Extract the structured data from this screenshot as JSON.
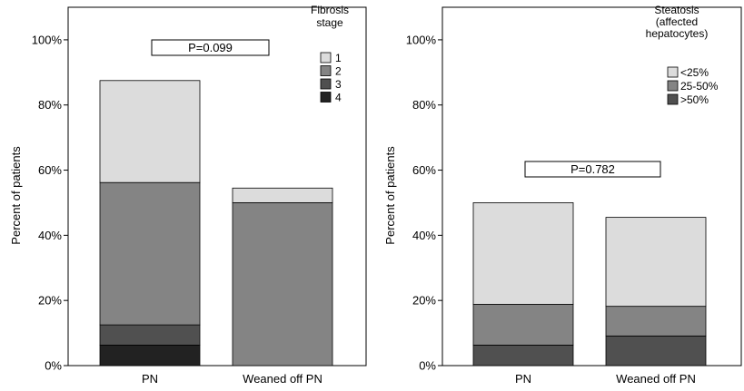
{
  "chart_data": [
    {
      "type": "bar",
      "stacked": true,
      "ylabel": "Percent of patients",
      "ylim": [
        0,
        110
      ],
      "yticks": [
        0,
        20,
        40,
        60,
        80,
        100
      ],
      "ytick_suffix": "%",
      "categories": [
        "PN",
        "Weaned off PN"
      ],
      "legend_title": [
        "Fibrosis",
        "stage"
      ],
      "legend_position": "top-right",
      "annotation": "P=0.099",
      "series": [
        {
          "name": "4",
          "color": "#222222",
          "values": [
            6.3,
            0
          ]
        },
        {
          "name": "3",
          "color": "#505050",
          "values": [
            6.2,
            0
          ]
        },
        {
          "name": "2",
          "color": "#848484",
          "values": [
            43.7,
            50.0
          ]
        },
        {
          "name": "1",
          "color": "#dcdcdc",
          "values": [
            31.3,
            4.5
          ]
        }
      ]
    },
    {
      "type": "bar",
      "stacked": true,
      "ylabel": "Percent of patients",
      "ylim": [
        0,
        110
      ],
      "yticks": [
        0,
        20,
        40,
        60,
        80,
        100
      ],
      "ytick_suffix": "%",
      "categories": [
        "PN",
        "Weaned off PN"
      ],
      "legend_title": [
        "Steatosis",
        "(affected",
        "hepatocytes)"
      ],
      "legend_position": "top-right",
      "annotation": "P=0.782",
      "series": [
        {
          "name": ">50%",
          "color": "#505050",
          "values": [
            6.3,
            9.1
          ]
        },
        {
          "name": "25-50%",
          "color": "#848484",
          "values": [
            12.5,
            9.1
          ]
        },
        {
          "name": "<25%",
          "color": "#dcdcdc",
          "values": [
            31.2,
            27.3
          ]
        }
      ]
    }
  ]
}
